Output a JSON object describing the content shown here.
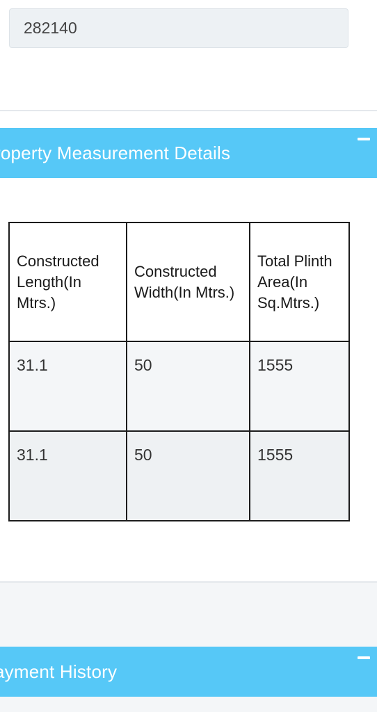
{
  "top_field": {
    "value": "282140"
  },
  "sections": {
    "property_measurement": {
      "title": "roperty Measurement Details",
      "collapse_icon": "minus-icon"
    },
    "payment_history": {
      "title": "ayment History",
      "collapse_icon": "minus-icon"
    }
  },
  "measurement_table": {
    "headers": [
      "Constructed Length(In Mtrs.)",
      "Constructed Width(In Mtrs.)",
      "Total Plinth Area(In Sq.Mtrs.)"
    ],
    "rows": [
      [
        "31.1",
        "50",
        "1555"
      ],
      [
        "31.1",
        "50",
        "1555"
      ]
    ]
  },
  "colors": {
    "header_bar": "#56c8f7",
    "field_background": "#edf1f4"
  }
}
